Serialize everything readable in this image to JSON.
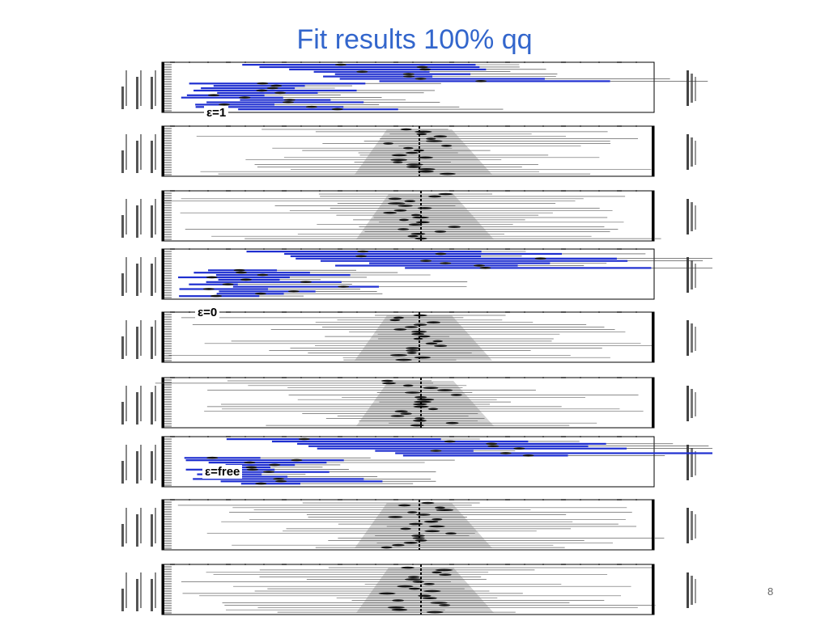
{
  "slide": {
    "title": "Fit results 100% qq",
    "page_number": "8"
  },
  "colors": {
    "title": "#3366cc",
    "blue_bars": "#1f2fd0",
    "grey_band": "#bdbdbd",
    "frame": "#000000"
  },
  "panels": [
    {
      "style": "blue",
      "label": "ε=1"
    },
    {
      "style": "grey"
    },
    {
      "style": "grey"
    },
    {
      "style": "blue"
    },
    {
      "style": "grey",
      "label": "ε=0"
    },
    {
      "style": "grey"
    },
    {
      "style": "blue",
      "label": "ε=free"
    },
    {
      "style": "grey"
    },
    {
      "style": "grey"
    }
  ]
}
